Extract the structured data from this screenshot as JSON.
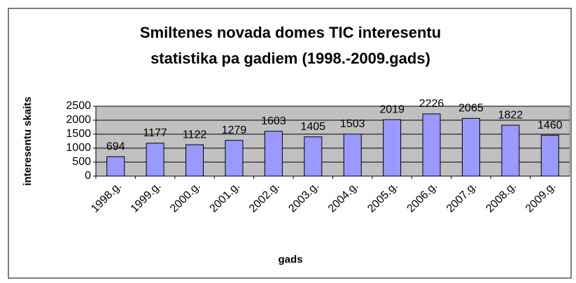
{
  "chart_data": {
    "type": "bar",
    "title": [
      "Smiltenes novada domes TIC interesentu",
      "statistika pa gadiem (1998.-2009.gads)"
    ],
    "x_label": "gads",
    "y_label": "interesentu skaits",
    "categories": [
      "1998.g.",
      "1999.g.",
      "2000.g.",
      "2001.g.",
      "2002.g.",
      "2003.g.",
      "2004.g.",
      "2005.g.",
      "2006.g.",
      "2007.g.",
      "2008.g.",
      "2009.g."
    ],
    "values": [
      694,
      1177,
      1122,
      1279,
      1603,
      1405,
      1503,
      2019,
      2226,
      2065,
      1822,
      1460
    ],
    "color": "#9999ff",
    "plot_background": "#c0c0c0",
    "ylim": [
      0,
      2500
    ],
    "yticks": [
      0,
      500,
      1000,
      1500,
      2000,
      2500
    ],
    "grid": true
  }
}
